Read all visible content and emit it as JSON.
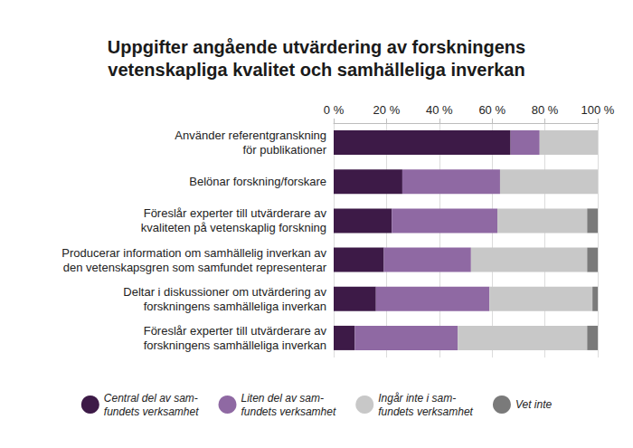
{
  "chart_data": {
    "type": "bar",
    "title": "Uppgifter angående utvärdering av forskningens\nvetenskapliga kvalitet och samhälleliga inverkan",
    "orientation": "horizontal",
    "stacked": true,
    "grid": true,
    "legend": "bottom",
    "categories": [
      "Använder referentgranskning\nför publikationer",
      "Belönar forskning/forskare",
      "Föreslår experter till utvärderare av\nkvaliteten på vetenskaplig forskning",
      "Producerar information om samhällelig inverkan av\nden vetenskapsgren som samfundet representerar",
      "Deltar i diskussioner om utvärdering av\nforskningens samhälleliga inverkan",
      "Föreslår experter till utvärderare av\nforskningens samhälleliga inverkan"
    ],
    "series": [
      {
        "name": "Central del av sam-\nfundets verksamhet",
        "color": "#3d1a47",
        "values": [
          67,
          26,
          22,
          19,
          16,
          8
        ]
      },
      {
        "name": "Liten del av sam-\nfundets verksamhet",
        "color": "#8f69a3",
        "values": [
          11,
          37,
          40,
          33,
          43,
          39
        ]
      },
      {
        "name": "Ingår inte i sam-\nfundets verksamhet",
        "color": "#c8c8c8",
        "values": [
          22,
          37,
          34,
          44,
          39,
          49
        ]
      },
      {
        "name": "Vet inte",
        "color": "#7a7a7a",
        "values": [
          0,
          0,
          4,
          4,
          2,
          4
        ]
      }
    ],
    "xlim": [
      0,
      100
    ],
    "xticks": [
      {
        "value": 0,
        "label": "0 %"
      },
      {
        "value": 20,
        "label": "20 %"
      },
      {
        "value": 40,
        "label": "40 %"
      },
      {
        "value": 60,
        "label": "60 %"
      },
      {
        "value": 80,
        "label": "80 %"
      },
      {
        "value": 100,
        "label": "100 %"
      }
    ]
  }
}
